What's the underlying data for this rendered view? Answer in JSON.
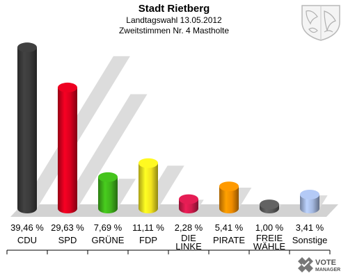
{
  "header": {
    "title": "Stadt Rietberg",
    "subtitle": "Landtagswahl 13.05.2012",
    "subtitle2": "Zweitstimmen Nr. 4 Mastholte"
  },
  "chart_data": {
    "type": "bar",
    "categories": [
      "CDU",
      "SPD",
      "GRÜNE",
      "FDP",
      "DIE LINKE",
      "PIRATE",
      "FREIE WÄHLE",
      "Sonstige"
    ],
    "category_lines": [
      [
        "CDU"
      ],
      [
        "SPD"
      ],
      [
        "GRÜNE"
      ],
      [
        "FDP"
      ],
      [
        "DIE",
        "LINKE"
      ],
      [
        "PIRATE"
      ],
      [
        "FREIE",
        "WÄHLE"
      ],
      [
        "Sonstige"
      ]
    ],
    "values": [
      39.46,
      29.63,
      7.69,
      11.11,
      2.28,
      5.41,
      1.0,
      3.41
    ],
    "value_labels": [
      "39,46 %",
      "29,63 %",
      "7,69 %",
      "11,11 %",
      "2,28 %",
      "5,41 %",
      "1,00 %",
      "3,41 %"
    ],
    "colors": [
      "#3a3a3a",
      "#d8001e",
      "#3fb21a",
      "#f2e21e",
      "#d01a4c",
      "#f08c00",
      "#5a5a5a",
      "#a4b8e0"
    ],
    "ylim": [
      0,
      40
    ]
  },
  "logo": {
    "line1": "VOTE",
    "line2": "MANAGER"
  }
}
